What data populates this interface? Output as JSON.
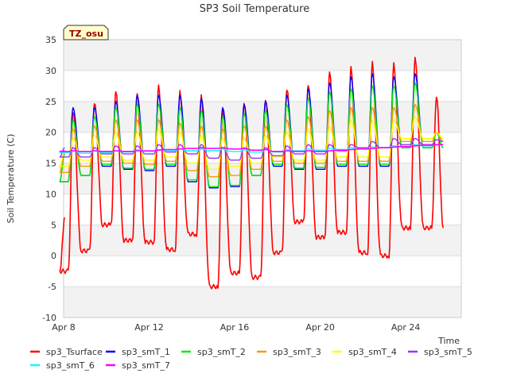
{
  "chart_data": {
    "type": "line",
    "title": "SP3 Soil Temperature",
    "xlabel": "Time",
    "ylabel": "Soil Temperature (C)",
    "ylim": [
      -10,
      35
    ],
    "yticks": [
      -10,
      -5,
      0,
      5,
      10,
      15,
      20,
      25,
      30,
      35
    ],
    "x_unit": "day of April",
    "xlim": [
      8,
      26.6
    ],
    "xticks": [
      {
        "x": 8,
        "label": "Apr 8"
      },
      {
        "x": 12,
        "label": "Apr 12"
      },
      {
        "x": 16,
        "label": "Apr 16"
      },
      {
        "x": 20,
        "label": "Apr 20"
      },
      {
        "x": 24,
        "label": "Apr 24"
      }
    ],
    "grid": "horizontal bands",
    "annotation": "TZ_osu",
    "legend_position": "bottom",
    "days": [
      8.4,
      9.4,
      10.4,
      11.4,
      12.4,
      13.4,
      14.4,
      15.4,
      16.4,
      17.4,
      18.4,
      19.4,
      20.4,
      21.4,
      22.4,
      23.4,
      24.4,
      25.4
    ],
    "series": [
      {
        "name": "sp3_Tsurface",
        "color": "#ff0000",
        "width": 1.6,
        "start": 6.0,
        "end": 4.5,
        "maxs": [
          23.5,
          24.8,
          26.5,
          26.0,
          27.3,
          26.5,
          26.0,
          24.0,
          25.0,
          25.5,
          27.0,
          27.5,
          29.5,
          30.3,
          31.2,
          31.2,
          32.3,
          26.0
        ],
        "mins": [
          -2.5,
          0.8,
          5.0,
          2.5,
          2.2,
          1.0,
          3.5,
          -5.0,
          -2.8,
          -3.5,
          0.5,
          5.5,
          3.0,
          3.8,
          0.5,
          0.0,
          4.5,
          4.5
        ]
      },
      {
        "name": "sp3_smT_1",
        "color": "#0000ff",
        "width": 1.4,
        "start": 17.0,
        "end": 17.5,
        "maxs": [
          24.0,
          24.0,
          25.0,
          26.0,
          26.0,
          26.0,
          25.5,
          24.0,
          24.5,
          25.0,
          26.0,
          27.0,
          28.0,
          29.0,
          29.5,
          29.0,
          29.5,
          20.0
        ],
        "mins": [
          12.0,
          13.0,
          14.5,
          14.0,
          13.8,
          14.5,
          12.0,
          11.0,
          11.2,
          13.0,
          14.5,
          14.0,
          14.0,
          14.5,
          14.5,
          14.5,
          17.5,
          17.5
        ]
      },
      {
        "name": "sp3_smT_2",
        "color": "#00ee00",
        "width": 1.4,
        "start": 16.5,
        "end": 17.5,
        "maxs": [
          22.0,
          22.5,
          24.0,
          24.5,
          24.5,
          24.0,
          23.5,
          22.5,
          23.0,
          23.5,
          24.5,
          25.5,
          26.5,
          27.0,
          27.5,
          27.5,
          28.0,
          20.0
        ],
        "mins": [
          12.0,
          13.0,
          14.8,
          14.2,
          14.0,
          14.8,
          12.3,
          11.2,
          11.4,
          13.0,
          14.8,
          14.2,
          14.3,
          14.8,
          14.8,
          14.8,
          17.5,
          17.5
        ]
      },
      {
        "name": "sp3_smT_3",
        "color": "#ff9900",
        "width": 1.4,
        "start": 17.0,
        "end": 18.5,
        "maxs": [
          20.5,
          21.0,
          22.0,
          22.0,
          22.0,
          21.5,
          21.0,
          20.5,
          21.0,
          21.0,
          22.0,
          22.5,
          23.5,
          24.0,
          24.0,
          24.0,
          24.5,
          20.0
        ],
        "mins": [
          13.5,
          14.5,
          15.3,
          15.0,
          14.8,
          15.3,
          13.8,
          12.8,
          13.0,
          14.0,
          15.3,
          15.0,
          15.0,
          15.3,
          15.3,
          15.3,
          18.5,
          18.5
        ]
      },
      {
        "name": "sp3_smT_4",
        "color": "#ffff00",
        "width": 1.4,
        "start": 17.0,
        "end": 19.0,
        "maxs": [
          19.0,
          19.5,
          20.0,
          20.0,
          20.5,
          20.0,
          19.5,
          19.0,
          19.0,
          19.5,
          20.0,
          20.5,
          21.0,
          22.0,
          22.0,
          22.0,
          22.5,
          20.0
        ],
        "mins": [
          14.5,
          15.5,
          16.0,
          15.5,
          15.5,
          16.0,
          15.0,
          14.0,
          14.5,
          15.0,
          16.0,
          15.5,
          15.5,
          16.0,
          16.0,
          16.0,
          19.0,
          19.0
        ]
      },
      {
        "name": "sp3_smT_5",
        "color": "#9933ff",
        "width": 1.4,
        "start": 17.5,
        "end": 18.5,
        "maxs": [
          17.5,
          17.5,
          17.8,
          17.8,
          18.0,
          18.0,
          18.0,
          17.5,
          17.5,
          17.5,
          17.8,
          18.0,
          18.0,
          18.0,
          18.5,
          19.0,
          19.0,
          18.8
        ],
        "mins": [
          16.0,
          16.0,
          16.5,
          16.5,
          16.5,
          16.8,
          16.5,
          15.8,
          15.5,
          15.8,
          16.2,
          16.5,
          16.5,
          17.0,
          17.5,
          17.5,
          18.0,
          18.0
        ]
      },
      {
        "name": "sp3_smT_6",
        "color": "#00ffff",
        "width": 1.4,
        "start": 16.8,
        "end": 18.0,
        "maxs": [
          17.0,
          17.0,
          17.0,
          17.2,
          17.2,
          17.3,
          17.3,
          17.3,
          17.2,
          17.2,
          17.2,
          17.3,
          17.4,
          17.5,
          17.6,
          17.8,
          18.0,
          18.0
        ],
        "mins": [
          16.7,
          16.6,
          16.7,
          16.8,
          16.9,
          17.0,
          17.0,
          17.0,
          16.9,
          16.8,
          16.8,
          17.0,
          17.1,
          17.2,
          17.3,
          17.5,
          17.7,
          17.8
        ]
      },
      {
        "name": "sp3_smT_7",
        "color": "#ff00ff",
        "width": 1.6,
        "start": 17.0,
        "end": 18.0,
        "maxs": [
          17.0,
          17.0,
          17.0,
          17.0,
          17.1,
          17.3,
          17.5,
          17.5,
          17.4,
          17.2,
          17.0,
          17.0,
          17.0,
          17.2,
          17.4,
          17.6,
          17.8,
          18.0
        ],
        "mins": [
          16.9,
          16.9,
          16.9,
          16.9,
          17.0,
          17.2,
          17.4,
          17.4,
          17.3,
          17.1,
          16.9,
          16.9,
          16.9,
          17.1,
          17.3,
          17.5,
          17.7,
          17.9
        ]
      }
    ]
  }
}
